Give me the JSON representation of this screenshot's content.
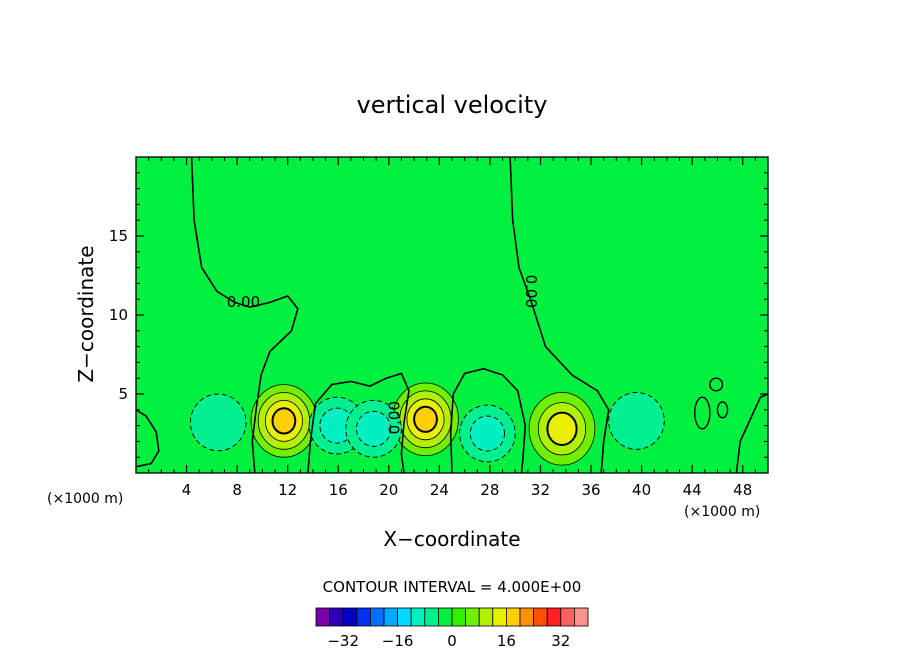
{
  "chart_data": {
    "type": "contour",
    "title": "vertical velocity",
    "xlabel": "X−coordinate",
    "ylabel": "Z−coordinate",
    "x_unit_note": "(×1000 m)",
    "z_unit_note": "(×1000 m)",
    "xlim": [
      0,
      50
    ],
    "ylim": [
      0,
      20
    ],
    "x_ticks": [
      4,
      8,
      12,
      16,
      20,
      24,
      28,
      32,
      36,
      40,
      44,
      48
    ],
    "y_ticks": [
      5,
      10,
      15
    ],
    "contour_interval_label": "CONTOUR INTERVAL = 4.000E+00",
    "contour_interval": 4,
    "contour_labels": [
      {
        "text": "0.00",
        "x": 8.5,
        "z": 10.8
      },
      {
        "text": "0.00",
        "x": 31.2,
        "z": 11.5
      },
      {
        "text": "0.00",
        "x": 20.5,
        "z": 3.5
      }
    ],
    "colorbar": {
      "levels": [
        -36,
        -32,
        -28,
        -24,
        -20,
        -16,
        -12,
        -8,
        -4,
        0,
        4,
        8,
        12,
        16,
        20,
        24,
        28,
        32,
        36
      ],
      "tick_labels": [
        "−32",
        "−16",
        "0",
        "16",
        "32"
      ],
      "tick_values": [
        -32,
        -16,
        0,
        16,
        32
      ],
      "colors": [
        "#7a00a8",
        "#2a00b0",
        "#0000c8",
        "#0030f0",
        "#0070ff",
        "#00a8ff",
        "#00d8ff",
        "#00f0c0",
        "#00f090",
        "#00f040",
        "#30f000",
        "#70f000",
        "#b0f000",
        "#e8f000",
        "#ffd000",
        "#ff9000",
        "#ff5000",
        "#ff2020",
        "#ff6060",
        "#ff9090"
      ]
    },
    "features": [
      {
        "kind": "updraft",
        "x": 11.7,
        "z": 3.3,
        "max_level": 16
      },
      {
        "kind": "updraft",
        "x": 22.9,
        "z": 3.4,
        "max_level": 16
      },
      {
        "kind": "updraft",
        "x": 33.7,
        "z": 2.8,
        "max_level": 12
      },
      {
        "kind": "downdraft",
        "x": 6.5,
        "z": 3.2,
        "min_level": -4
      },
      {
        "kind": "downdraft",
        "x": 15.9,
        "z": 3.0,
        "min_level": -8
      },
      {
        "kind": "downdraft",
        "x": 18.8,
        "z": 2.8,
        "min_level": -8
      },
      {
        "kind": "downdraft",
        "x": 27.8,
        "z": 2.5,
        "min_level": -8
      },
      {
        "kind": "downdraft",
        "x": 39.6,
        "z": 3.3,
        "min_level": -4
      }
    ]
  }
}
